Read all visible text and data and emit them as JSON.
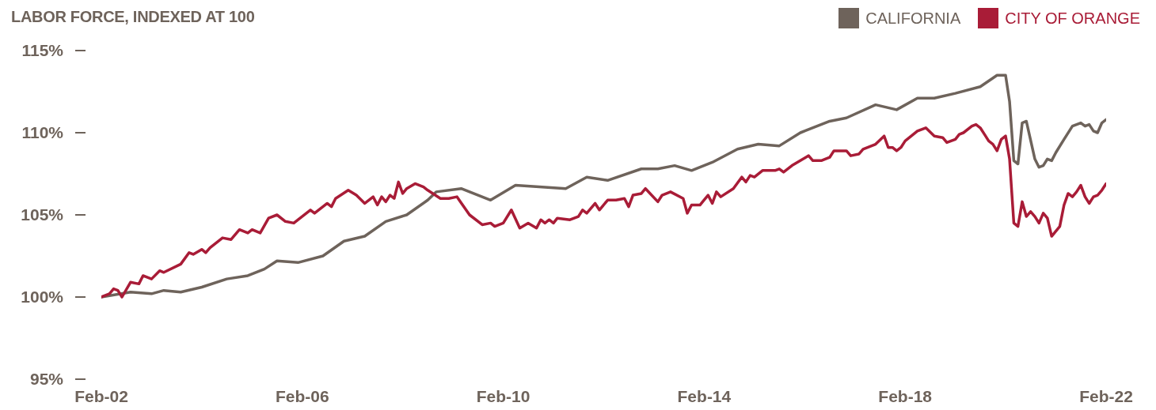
{
  "chart_data": {
    "type": "line",
    "title": "LABOR FORCE, INDEXED AT 100",
    "legend": "top right",
    "marker": "none",
    "line_style": "solid",
    "ylim": [
      95,
      115
    ],
    "yticks": [
      {
        "value": 95,
        "label": "95%"
      },
      {
        "value": 100,
        "label": "100%"
      },
      {
        "value": 105,
        "label": "105%"
      },
      {
        "value": 110,
        "label": "110%"
      },
      {
        "value": 115,
        "label": "115%"
      }
    ],
    "xlim": [
      "2002-02",
      "2022-02"
    ],
    "xticks": [
      {
        "value": "2002-02",
        "label": "Feb-02"
      },
      {
        "value": "2006-02",
        "label": "Feb-06"
      },
      {
        "value": "2010-02",
        "label": "Feb-10"
      },
      {
        "value": "2014-02",
        "label": "Feb-14"
      },
      {
        "value": "2018-02",
        "label": "Feb-18"
      },
      {
        "value": "2022-02",
        "label": "Feb-22"
      }
    ],
    "series": [
      {
        "name": "CALIFORNIA",
        "color": "#6e635b",
        "x": [
          "2002-02",
          "2002-09",
          "2003-02",
          "2003-05",
          "2003-09",
          "2004-02",
          "2004-08",
          "2005-01",
          "2005-05",
          "2005-08",
          "2006-01",
          "2006-07",
          "2006-12",
          "2007-05",
          "2007-10",
          "2008-03",
          "2008-08",
          "2008-10",
          "2009-04",
          "2009-11",
          "2010-05",
          "2011-05",
          "2011-10",
          "2012-03",
          "2012-11",
          "2013-03",
          "2013-07",
          "2013-11",
          "2014-04",
          "2014-10",
          "2015-03",
          "2015-08",
          "2016-01",
          "2016-08",
          "2016-12",
          "2017-07",
          "2017-12",
          "2018-05",
          "2018-09",
          "2019-02",
          "2019-08",
          "2019-12",
          "2020-02",
          "2020-03",
          "2020-04",
          "2020-05",
          "2020-06",
          "2020-07",
          "2020-09",
          "2020-10",
          "2020-11",
          "2020-12",
          "2021-01",
          "2021-02",
          "2021-04",
          "2021-06",
          "2021-08",
          "2021-09",
          "2021-10",
          "2021-11",
          "2021-12",
          "2022-01",
          "2022-02"
        ],
        "values": [
          100.0,
          100.3,
          100.2,
          100.4,
          100.3,
          100.6,
          101.1,
          101.3,
          101.7,
          102.2,
          102.1,
          102.5,
          103.4,
          103.7,
          104.6,
          105.0,
          105.9,
          106.4,
          106.6,
          105.9,
          106.8,
          106.6,
          107.3,
          107.1,
          107.8,
          107.8,
          108.0,
          107.7,
          108.2,
          109.0,
          109.3,
          109.2,
          110.0,
          110.7,
          110.9,
          111.7,
          111.4,
          112.1,
          112.1,
          112.4,
          112.8,
          113.5,
          113.5,
          111.9,
          108.3,
          108.1,
          110.6,
          110.7,
          108.4,
          107.9,
          108.0,
          108.4,
          108.3,
          108.8,
          109.6,
          110.4,
          110.6,
          110.4,
          110.5,
          110.1,
          110.0,
          110.6,
          110.8
        ]
      },
      {
        "name": "CITY OF ORANGE",
        "color": "#a91c37",
        "x": [
          "2002-02",
          "2002-04",
          "2002-05",
          "2002-06",
          "2002-07",
          "2002-09",
          "2002-11",
          "2002-12",
          "2003-02",
          "2003-04",
          "2003-05",
          "2003-09",
          "2003-11",
          "2003-12",
          "2004-02",
          "2004-03",
          "2004-04",
          "2004-07",
          "2004-09",
          "2004-11",
          "2005-01",
          "2005-02",
          "2005-04",
          "2005-06",
          "2005-08",
          "2005-10",
          "2005-12",
          "2006-04",
          "2006-05",
          "2006-08",
          "2006-09",
          "2006-10",
          "2007-01",
          "2007-03",
          "2007-05",
          "2007-07",
          "2007-08",
          "2007-09",
          "2007-10",
          "2007-11",
          "2007-12",
          "2008-01",
          "2008-02",
          "2008-03",
          "2008-05",
          "2008-07",
          "2008-08",
          "2008-11",
          "2009-01",
          "2009-03",
          "2009-06",
          "2009-09",
          "2009-11",
          "2009-12",
          "2010-02",
          "2010-04",
          "2010-06",
          "2010-08",
          "2010-10",
          "2010-11",
          "2010-12",
          "2011-01",
          "2011-02",
          "2011-03",
          "2011-06",
          "2011-08",
          "2011-09",
          "2011-10",
          "2011-12",
          "2012-01",
          "2012-03",
          "2012-05",
          "2012-07",
          "2012-08",
          "2012-09",
          "2012-11",
          "2012-12",
          "2013-03",
          "2013-04",
          "2013-06",
          "2013-09",
          "2013-10",
          "2013-11",
          "2014-01",
          "2014-03",
          "2014-04",
          "2014-05",
          "2014-06",
          "2014-09",
          "2014-11",
          "2014-12",
          "2015-01",
          "2015-02",
          "2015-04",
          "2015-06",
          "2015-07",
          "2015-08",
          "2015-09",
          "2015-11",
          "2016-01",
          "2016-03",
          "2016-04",
          "2016-06",
          "2016-08",
          "2016-09",
          "2016-12",
          "2017-01",
          "2017-03",
          "2017-04",
          "2017-07",
          "2017-09",
          "2017-10",
          "2017-11",
          "2017-12",
          "2018-01",
          "2018-02",
          "2018-05",
          "2018-07",
          "2018-09",
          "2018-11",
          "2018-12",
          "2019-02",
          "2019-03",
          "2019-04",
          "2019-06",
          "2019-07",
          "2019-08",
          "2019-09",
          "2019-10",
          "2019-11",
          "2019-12",
          "2020-01",
          "2020-02",
          "2020-03",
          "2020-04",
          "2020-05",
          "2020-06",
          "2020-07",
          "2020-08",
          "2020-09",
          "2020-10",
          "2020-11",
          "2020-12",
          "2021-01",
          "2021-03",
          "2021-04",
          "2021-05",
          "2021-06",
          "2021-07",
          "2021-08",
          "2021-09",
          "2021-10",
          "2021-11",
          "2021-12",
          "2022-01",
          "2022-02"
        ],
        "values": [
          100.0,
          100.2,
          100.5,
          100.4,
          100.0,
          100.9,
          100.8,
          101.3,
          101.1,
          101.6,
          101.5,
          102.0,
          102.7,
          102.6,
          102.9,
          102.7,
          103.0,
          103.6,
          103.5,
          104.1,
          103.9,
          104.1,
          103.9,
          104.8,
          105.0,
          104.6,
          104.5,
          105.3,
          105.1,
          105.7,
          105.5,
          106.0,
          106.5,
          106.2,
          105.7,
          106.1,
          105.6,
          106.1,
          105.8,
          106.2,
          106.0,
          107.0,
          106.3,
          106.6,
          106.9,
          106.7,
          106.5,
          106.0,
          106.0,
          106.1,
          105.0,
          104.4,
          104.5,
          104.3,
          104.5,
          105.3,
          104.2,
          104.5,
          104.2,
          104.7,
          104.5,
          104.7,
          104.5,
          104.8,
          104.7,
          104.9,
          105.3,
          105.1,
          105.7,
          105.3,
          105.9,
          105.9,
          106.0,
          105.5,
          106.2,
          106.3,
          106.6,
          105.8,
          106.2,
          106.4,
          106.0,
          105.1,
          105.6,
          105.6,
          106.2,
          105.7,
          106.4,
          106.1,
          106.6,
          107.3,
          107.0,
          107.4,
          107.3,
          107.7,
          107.7,
          107.7,
          107.8,
          107.6,
          108.0,
          108.3,
          108.6,
          108.3,
          108.3,
          108.5,
          108.9,
          108.9,
          108.6,
          108.7,
          109.0,
          109.3,
          109.8,
          109.1,
          109.1,
          108.9,
          109.1,
          109.5,
          110.1,
          110.3,
          109.8,
          109.7,
          109.4,
          109.6,
          109.9,
          110.0,
          110.4,
          110.5,
          110.3,
          109.9,
          109.5,
          109.3,
          108.9,
          109.6,
          109.8,
          108.4,
          104.5,
          104.3,
          105.8,
          104.9,
          105.2,
          104.9,
          104.5,
          105.1,
          104.8,
          103.7,
          104.3,
          105.6,
          106.3,
          106.1,
          106.4,
          106.8,
          106.1,
          105.7,
          106.1,
          106.2,
          106.5,
          106.9
        ]
      }
    ]
  }
}
